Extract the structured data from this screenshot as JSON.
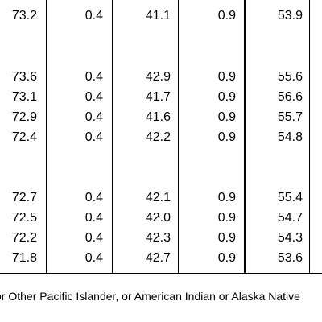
{
  "table": {
    "rows": [
      {
        "cells": [
          "73.2",
          "0.4",
          "41.1",
          "0.9",
          "53.9"
        ]
      },
      {
        "cells": [
          "73.6",
          "0.4",
          "42.9",
          "0.9",
          "55.6"
        ]
      },
      {
        "cells": [
          "73.1",
          "0.4",
          "41.7",
          "0.9",
          "56.6"
        ]
      },
      {
        "cells": [
          "72.9",
          "0.4",
          "41.6",
          "0.9",
          "55.7"
        ]
      },
      {
        "cells": [
          "72.4",
          "0.4",
          "42.2",
          "0.9",
          "54.8"
        ]
      },
      {
        "cells": [
          "72.7",
          "0.4",
          "42.1",
          "0.9",
          "55.4"
        ]
      },
      {
        "cells": [
          "72.5",
          "0.4",
          "42.0",
          "0.9",
          "54.7"
        ]
      },
      {
        "cells": [
          "72.2",
          "0.4",
          "42.3",
          "0.9",
          "54.3"
        ]
      },
      {
        "cells": [
          "71.8",
          "0.4",
          "42.7",
          "0.9",
          "53.6"
        ]
      }
    ]
  },
  "footnote": "or Other Pacific Islander, or American Indian or Alaska Native"
}
